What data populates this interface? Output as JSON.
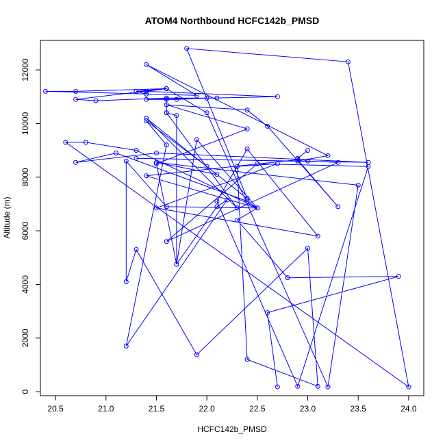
{
  "chart_data": {
    "type": "line",
    "title": "ATOM4 Northbound HCFC142b_PMSD",
    "xlabel": "HCFC142b_PMSD",
    "ylabel": "Altitude (m)",
    "xlim": [
      20.35,
      24.15
    ],
    "ylim": [
      -150,
      13100
    ],
    "xticks": [
      20.5,
      21.0,
      21.5,
      22.0,
      22.5,
      23.0,
      23.5,
      24.0
    ],
    "xtick_labels": [
      "20.5",
      "21.0",
      "21.5",
      "22.0",
      "22.5",
      "23.0",
      "23.5",
      "24.0"
    ],
    "yticks": [
      0,
      2000,
      4000,
      6000,
      8000,
      10000,
      12000
    ],
    "ytick_labels": [
      "0",
      "2000",
      "4000",
      "6000",
      "8000",
      "10000",
      "12000"
    ],
    "color": "#0000ff",
    "series": [
      {
        "x": [
          22.7,
          22.6,
          23.9,
          22.8,
          22.3,
          22.5,
          21.4,
          22.9,
          23.3,
          22.6,
          22.4,
          21.6,
          22.4,
          21.5,
          21.7,
          21.7,
          21.6,
          21.6,
          21.6,
          22.3,
          21.4,
          22.4,
          21.8,
          23.4,
          24.0,
          20.6,
          20.8,
          21.3,
          22.5,
          22.4,
          21.1,
          20.7,
          21.5,
          23.6,
          21.3,
          22.9,
          23.2,
          21.4,
          21.9,
          20.4,
          20.7,
          21.6,
          21.3,
          21.4,
          21.4,
          21.3,
          21.6,
          21.4,
          22.7,
          21.4,
          21.7,
          22.0,
          22.1,
          21.6,
          20.9,
          20.7,
          21.6,
          22.0,
          23.2,
          23.5,
          21.5,
          22.1,
          22.0,
          21.4,
          21.6,
          21.2,
          22.2,
          22.1,
          21.7,
          21.9,
          22.5,
          21.6,
          21.2,
          21.2,
          21.3,
          21.9,
          23.0,
          23.1,
          22.4,
          22.3,
          22.7,
          21.5,
          23.1,
          22.4,
          22.1,
          22.9,
          23.6,
          22.5,
          21.6,
          23.3,
          23.0,
          22.9,
          23.0
        ],
        "y": [
          180,
          2950,
          4300,
          4250,
          6400,
          6850,
          8050,
          8650,
          6900,
          9900,
          10500,
          10700,
          9800,
          8500,
          4750,
          10300,
          10400,
          10900,
          10400,
          6850,
          10200,
          7200,
          12800,
          12300,
          180,
          9300,
          9300,
          9000,
          6850,
          7100,
          8900,
          8550,
          8900,
          8550,
          8700,
          8600,
          8800,
          12200,
          11050,
          11200,
          11200,
          11300,
          11200,
          11100,
          11200,
          11200,
          11300,
          11200,
          11000,
          10900,
          10900,
          10950,
          10950,
          10950,
          10850,
          10900,
          11300,
          10400,
          180,
          7700,
          8550,
          8100,
          8400,
          10100,
          9200,
          1700,
          7150,
          6900,
          4750,
          9400,
          6850,
          6900,
          8600,
          4100,
          5300,
          1380,
          5350,
          200,
          1200,
          8400,
          8500,
          6850,
          5800,
          9050,
          7100,
          200,
          8400,
          8500,
          5600,
          8550,
          8600,
          8700,
          9000
        ]
      }
    ]
  }
}
